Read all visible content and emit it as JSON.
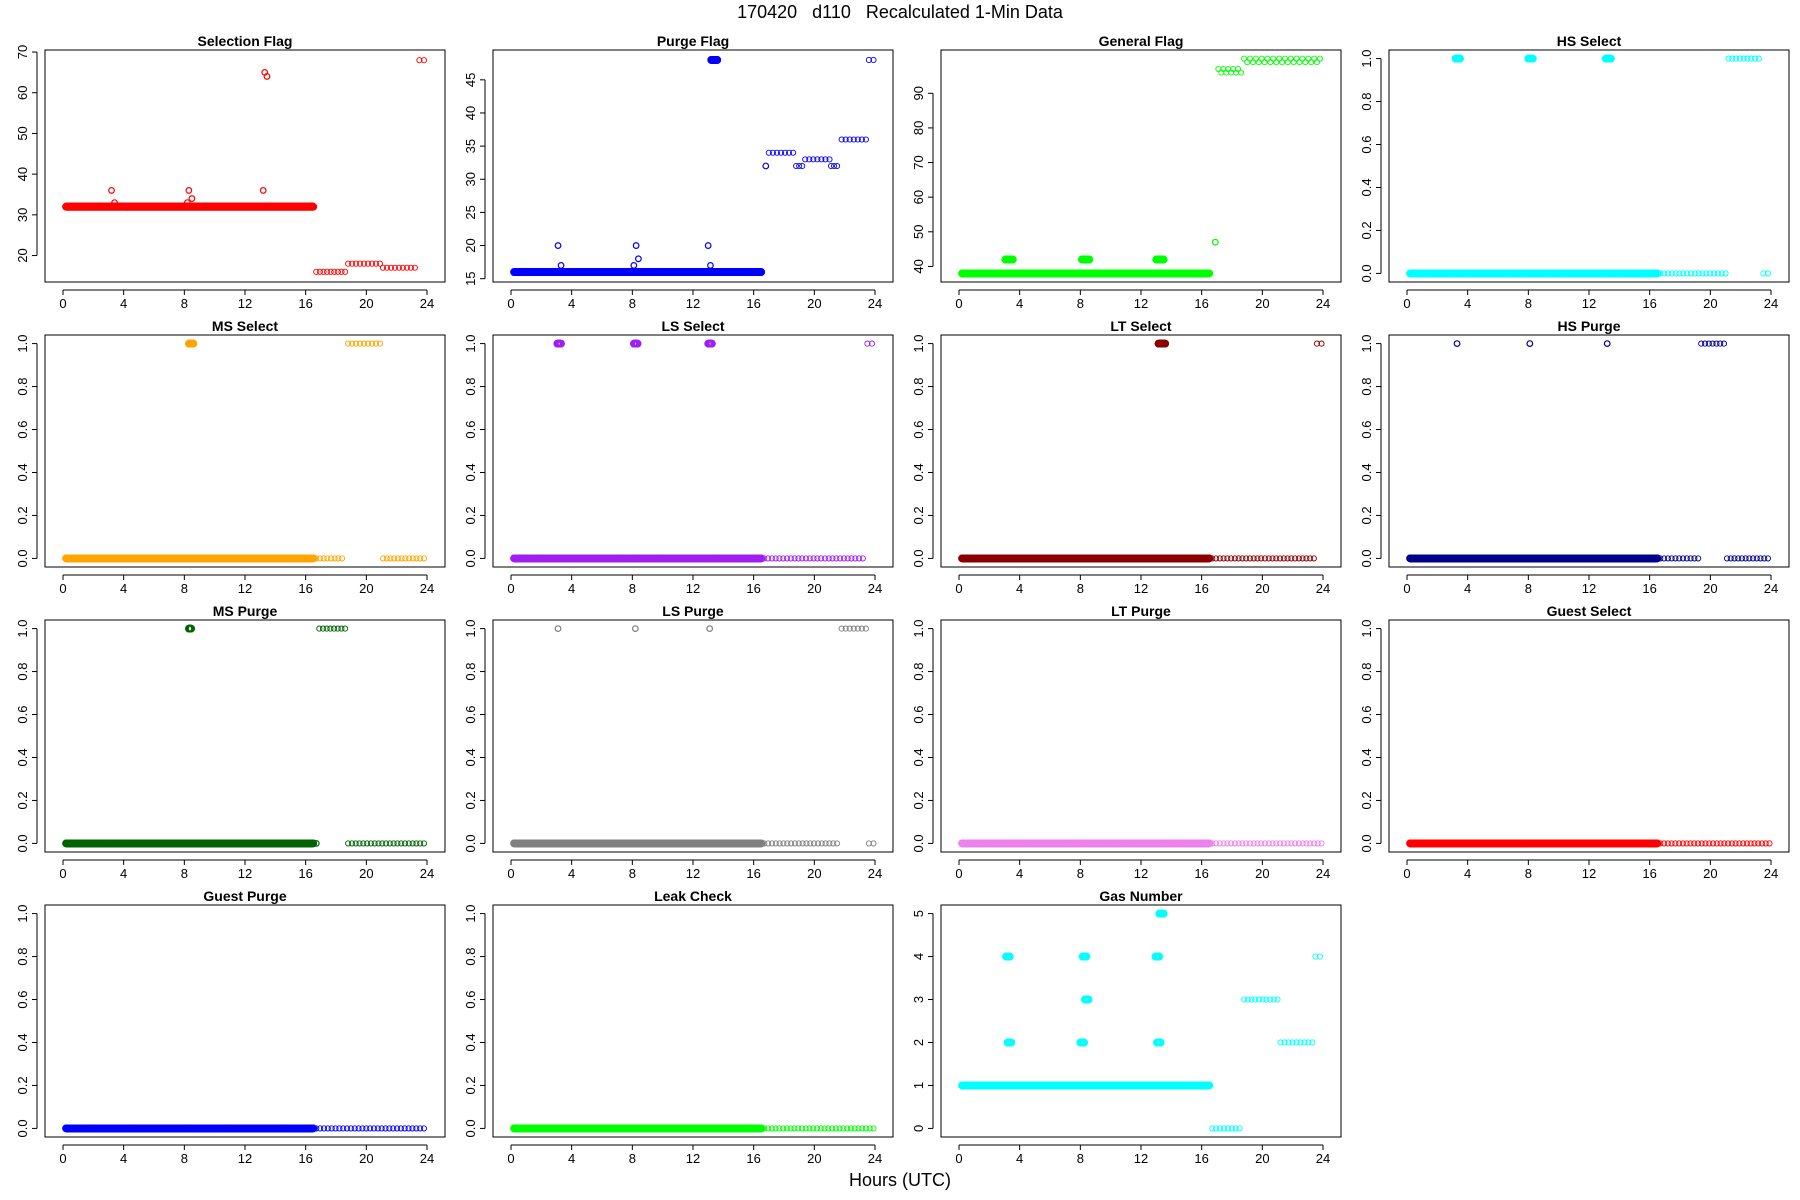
{
  "figure": {
    "title": "170420   d110   Recalculated 1-Min Data",
    "xlabel": "Hours (UTC)"
  },
  "chart_data": [
    {
      "type": "scatter",
      "title": "Selection Flag",
      "color": "#ff0000",
      "xlim": [
        0,
        24
      ],
      "xticks": [
        0,
        4,
        8,
        12,
        16,
        20,
        24
      ],
      "ylim": [
        13.5,
        70.5
      ],
      "yticks": [
        20,
        30,
        40,
        50,
        60,
        70
      ],
      "segments": [
        {
          "x0": 0.2,
          "x1": 16.5,
          "y": 32,
          "step": 0.0167,
          "style": "dense"
        },
        {
          "x0": 16.7,
          "x1": 18.6,
          "y": 16,
          "step": 0.25,
          "style": "sparse"
        },
        {
          "x0": 18.8,
          "x1": 20.9,
          "y": 18,
          "step": 0.25,
          "style": "sparse"
        },
        {
          "x0": 21.1,
          "x1": 23.2,
          "y": 17,
          "step": 0.25,
          "style": "sparse"
        },
        {
          "x0": 23.5,
          "x1": 23.8,
          "y": 68,
          "step": 0.25,
          "style": "sparse"
        }
      ],
      "points": [
        {
          "x": 3.2,
          "y": 36
        },
        {
          "x": 3.4,
          "y": 33
        },
        {
          "x": 8.2,
          "y": 33
        },
        {
          "x": 8.3,
          "y": 36
        },
        {
          "x": 8.5,
          "y": 34
        },
        {
          "x": 13.2,
          "y": 36
        },
        {
          "x": 13.3,
          "y": 65
        },
        {
          "x": 13.45,
          "y": 64
        }
      ]
    },
    {
      "type": "scatter",
      "title": "Purge Flag",
      "color": "#0000ff",
      "xlim": [
        0,
        24
      ],
      "xticks": [
        0,
        4,
        8,
        12,
        16,
        20,
        24
      ],
      "ylim": [
        14.5,
        49.5
      ],
      "yticks": [
        15,
        20,
        25,
        30,
        35,
        40,
        45
      ],
      "segments": [
        {
          "x0": 0.2,
          "x1": 16.5,
          "y": 16,
          "step": 0.0167,
          "style": "dense"
        },
        {
          "x0": 13.2,
          "x1": 13.6,
          "y": 48,
          "step": 0.0167,
          "style": "dense"
        },
        {
          "x0": 17.0,
          "x1": 18.6,
          "y": 34,
          "step": 0.25,
          "style": "sparse"
        },
        {
          "x0": 18.8,
          "x1": 19.2,
          "y": 32,
          "step": 0.25,
          "style": "sparse"
        },
        {
          "x0": 19.4,
          "x1": 21.0,
          "y": 33,
          "step": 0.25,
          "style": "sparse"
        },
        {
          "x0": 21.1,
          "x1": 21.5,
          "y": 32,
          "step": 0.25,
          "style": "sparse"
        },
        {
          "x0": 21.8,
          "x1": 23.4,
          "y": 36,
          "step": 0.25,
          "style": "sparse"
        },
        {
          "x0": 23.6,
          "x1": 23.9,
          "y": 48,
          "step": 0.25,
          "style": "sparse"
        }
      ],
      "points": [
        {
          "x": 3.1,
          "y": 20
        },
        {
          "x": 3.3,
          "y": 17
        },
        {
          "x": 8.1,
          "y": 17
        },
        {
          "x": 8.25,
          "y": 20
        },
        {
          "x": 8.4,
          "y": 18
        },
        {
          "x": 13.0,
          "y": 20
        },
        {
          "x": 13.15,
          "y": 17
        },
        {
          "x": 16.8,
          "y": 32
        }
      ]
    },
    {
      "type": "scatter",
      "title": "General Flag",
      "color": "#00ff00",
      "xlim": [
        0,
        24
      ],
      "xticks": [
        0,
        4,
        8,
        12,
        16,
        20,
        24
      ],
      "ylim": [
        35.5,
        102.5
      ],
      "yticks": [
        40,
        50,
        60,
        70,
        80,
        90
      ],
      "segments": [
        {
          "x0": 0.2,
          "x1": 16.5,
          "y": 38,
          "step": 0.0167,
          "style": "dense"
        },
        {
          "x0": 3.05,
          "x1": 3.55,
          "y": 42,
          "step": 0.0167,
          "style": "dense"
        },
        {
          "x0": 8.1,
          "x1": 8.6,
          "y": 42,
          "step": 0.0167,
          "style": "dense"
        },
        {
          "x0": 13.0,
          "x1": 13.5,
          "y": 42,
          "step": 0.0167,
          "style": "dense"
        },
        {
          "x0": 17.1,
          "x1": 18.4,
          "y": 97,
          "step": 0.35,
          "style": "sparse"
        },
        {
          "x0": 17.3,
          "x1": 18.6,
          "y": 96,
          "step": 0.35,
          "style": "sparse"
        },
        {
          "x0": 18.8,
          "x1": 23.8,
          "y": 100,
          "step": 0.4,
          "style": "sparse"
        },
        {
          "x0": 19.0,
          "x1": 23.6,
          "y": 99,
          "step": 0.4,
          "style": "sparse"
        }
      ],
      "points": [
        {
          "x": 16.9,
          "y": 47
        }
      ]
    },
    {
      "type": "scatter",
      "title": "HS Select",
      "color": "#00ffff",
      "xlim": [
        0,
        24
      ],
      "xticks": [
        0,
        4,
        8,
        12,
        16,
        20,
        24
      ],
      "ylim": [
        -0.04,
        1.04
      ],
      "yticks": [
        0.0,
        0.2,
        0.4,
        0.6,
        0.8,
        1.0
      ],
      "segments": [
        {
          "x0": 0.2,
          "x1": 16.5,
          "y": 0,
          "step": 0.0167,
          "style": "dense"
        },
        {
          "x0": 3.2,
          "x1": 3.5,
          "y": 1,
          "step": 0.0167,
          "style": "dense"
        },
        {
          "x0": 8.0,
          "x1": 8.3,
          "y": 1,
          "step": 0.0167,
          "style": "dense"
        },
        {
          "x0": 13.1,
          "x1": 13.45,
          "y": 1,
          "step": 0.0167,
          "style": "dense"
        },
        {
          "x0": 16.7,
          "x1": 21.0,
          "y": 0,
          "step": 0.25,
          "style": "sparse"
        },
        {
          "x0": 21.2,
          "x1": 23.2,
          "y": 1,
          "step": 0.25,
          "style": "sparse"
        },
        {
          "x0": 23.5,
          "x1": 23.8,
          "y": 0,
          "step": 0.25,
          "style": "sparse"
        }
      ],
      "points": []
    },
    {
      "type": "scatter",
      "title": "MS Select",
      "color": "#ffa500",
      "xlim": [
        0,
        24
      ],
      "xticks": [
        0,
        4,
        8,
        12,
        16,
        20,
        24
      ],
      "ylim": [
        -0.04,
        1.04
      ],
      "yticks": [
        0.0,
        0.2,
        0.4,
        0.6,
        0.8,
        1.0
      ],
      "segments": [
        {
          "x0": 0.2,
          "x1": 16.5,
          "y": 0,
          "step": 0.0167,
          "style": "dense"
        },
        {
          "x0": 8.3,
          "x1": 8.6,
          "y": 1,
          "step": 0.0167,
          "style": "dense"
        },
        {
          "x0": 16.7,
          "x1": 18.4,
          "y": 0,
          "step": 0.25,
          "style": "sparse"
        },
        {
          "x0": 18.8,
          "x1": 20.9,
          "y": 1,
          "step": 0.25,
          "style": "sparse"
        },
        {
          "x0": 21.1,
          "x1": 23.8,
          "y": 0,
          "step": 0.25,
          "style": "sparse"
        }
      ],
      "points": []
    },
    {
      "type": "scatter",
      "title": "LS Select",
      "color": "#a020f0",
      "xlim": [
        0,
        24
      ],
      "xticks": [
        0,
        4,
        8,
        12,
        16,
        20,
        24
      ],
      "ylim": [
        -0.04,
        1.04
      ],
      "yticks": [
        0.0,
        0.2,
        0.4,
        0.6,
        0.8,
        1.0
      ],
      "segments": [
        {
          "x0": 0.2,
          "x1": 16.5,
          "y": 0,
          "step": 0.0167,
          "style": "dense"
        },
        {
          "x0": 3.05,
          "x1": 3.3,
          "y": 1,
          "step": 0.0167,
          "style": "dense"
        },
        {
          "x0": 8.1,
          "x1": 8.35,
          "y": 1,
          "step": 0.0167,
          "style": "dense"
        },
        {
          "x0": 13.0,
          "x1": 13.25,
          "y": 1,
          "step": 0.0167,
          "style": "dense"
        },
        {
          "x0": 16.7,
          "x1": 23.2,
          "y": 0,
          "step": 0.25,
          "style": "sparse"
        },
        {
          "x0": 23.5,
          "x1": 23.8,
          "y": 1,
          "step": 0.25,
          "style": "sparse"
        }
      ],
      "points": []
    },
    {
      "type": "scatter",
      "title": "LT Select",
      "color": "#8b0000",
      "xlim": [
        0,
        24
      ],
      "xticks": [
        0,
        4,
        8,
        12,
        16,
        20,
        24
      ],
      "ylim": [
        -0.04,
        1.04
      ],
      "yticks": [
        0.0,
        0.2,
        0.4,
        0.6,
        0.8,
        1.0
      ],
      "segments": [
        {
          "x0": 0.2,
          "x1": 16.5,
          "y": 0,
          "step": 0.0167,
          "style": "dense"
        },
        {
          "x0": 13.15,
          "x1": 13.6,
          "y": 1,
          "step": 0.0167,
          "style": "dense"
        },
        {
          "x0": 16.7,
          "x1": 23.4,
          "y": 0,
          "step": 0.25,
          "style": "sparse"
        },
        {
          "x0": 23.6,
          "x1": 23.9,
          "y": 1,
          "step": 0.25,
          "style": "sparse"
        }
      ],
      "points": []
    },
    {
      "type": "scatter",
      "title": "HS Purge",
      "color": "#00008b",
      "xlim": [
        0,
        24
      ],
      "xticks": [
        0,
        4,
        8,
        12,
        16,
        20,
        24
      ],
      "ylim": [
        -0.04,
        1.04
      ],
      "yticks": [
        0.0,
        0.2,
        0.4,
        0.6,
        0.8,
        1.0
      ],
      "segments": [
        {
          "x0": 0.2,
          "x1": 16.5,
          "y": 0,
          "step": 0.0167,
          "style": "dense"
        },
        {
          "x0": 16.7,
          "x1": 19.2,
          "y": 0,
          "step": 0.25,
          "style": "sparse"
        },
        {
          "x0": 19.4,
          "x1": 20.9,
          "y": 1,
          "step": 0.25,
          "style": "sparse"
        },
        {
          "x0": 21.1,
          "x1": 23.8,
          "y": 0,
          "step": 0.25,
          "style": "sparse"
        }
      ],
      "points": [
        {
          "x": 3.3,
          "y": 1
        },
        {
          "x": 8.1,
          "y": 1
        },
        {
          "x": 13.2,
          "y": 1
        }
      ]
    },
    {
      "type": "scatter",
      "title": "MS Purge",
      "color": "#006400",
      "xlim": [
        0,
        24
      ],
      "xticks": [
        0,
        4,
        8,
        12,
        16,
        20,
        24
      ],
      "ylim": [
        -0.04,
        1.04
      ],
      "yticks": [
        0.0,
        0.2,
        0.4,
        0.6,
        0.8,
        1.0
      ],
      "segments": [
        {
          "x0": 0.2,
          "x1": 16.5,
          "y": 0,
          "step": 0.0167,
          "style": "dense"
        },
        {
          "x0": 8.3,
          "x1": 8.45,
          "y": 1,
          "step": 0.0167,
          "style": "dense"
        },
        {
          "x0": 16.9,
          "x1": 18.6,
          "y": 1,
          "step": 0.25,
          "style": "sparse"
        },
        {
          "x0": 18.8,
          "x1": 23.8,
          "y": 0,
          "step": 0.25,
          "style": "sparse"
        }
      ],
      "points": [
        {
          "x": 16.7,
          "y": 0
        }
      ]
    },
    {
      "type": "scatter",
      "title": "LS Purge",
      "color": "#808080",
      "xlim": [
        0,
        24
      ],
      "xticks": [
        0,
        4,
        8,
        12,
        16,
        20,
        24
      ],
      "ylim": [
        -0.04,
        1.04
      ],
      "yticks": [
        0.0,
        0.2,
        0.4,
        0.6,
        0.8,
        1.0
      ],
      "segments": [
        {
          "x0": 0.2,
          "x1": 16.5,
          "y": 0,
          "step": 0.0167,
          "style": "dense"
        },
        {
          "x0": 16.7,
          "x1": 21.5,
          "y": 0,
          "step": 0.25,
          "style": "sparse"
        },
        {
          "x0": 21.8,
          "x1": 23.4,
          "y": 1,
          "step": 0.25,
          "style": "sparse"
        },
        {
          "x0": 23.6,
          "x1": 23.9,
          "y": 0,
          "step": 0.25,
          "style": "sparse"
        }
      ],
      "points": [
        {
          "x": 3.1,
          "y": 1
        },
        {
          "x": 8.2,
          "y": 1
        },
        {
          "x": 13.1,
          "y": 1
        }
      ]
    },
    {
      "type": "scatter",
      "title": "LT Purge",
      "color": "#ee82ee",
      "xlim": [
        0,
        24
      ],
      "xticks": [
        0,
        4,
        8,
        12,
        16,
        20,
        24
      ],
      "ylim": [
        -0.04,
        1.04
      ],
      "yticks": [
        0.0,
        0.2,
        0.4,
        0.6,
        0.8,
        1.0
      ],
      "segments": [
        {
          "x0": 0.2,
          "x1": 16.5,
          "y": 0,
          "step": 0.0167,
          "style": "dense"
        },
        {
          "x0": 16.7,
          "x1": 23.9,
          "y": 0,
          "step": 0.25,
          "style": "sparse"
        }
      ],
      "points": []
    },
    {
      "type": "scatter",
      "title": "Guest Select",
      "color": "#ff0000",
      "xlim": [
        0,
        24
      ],
      "xticks": [
        0,
        4,
        8,
        12,
        16,
        20,
        24
      ],
      "ylim": [
        -0.04,
        1.04
      ],
      "yticks": [
        0.0,
        0.2,
        0.4,
        0.6,
        0.8,
        1.0
      ],
      "segments": [
        {
          "x0": 0.2,
          "x1": 16.5,
          "y": 0,
          "step": 0.0167,
          "style": "dense"
        },
        {
          "x0": 16.7,
          "x1": 23.9,
          "y": 0,
          "step": 0.25,
          "style": "sparse"
        }
      ],
      "points": []
    },
    {
      "type": "scatter",
      "title": "Guest Purge",
      "color": "#0000ff",
      "xlim": [
        0,
        24
      ],
      "xticks": [
        0,
        4,
        8,
        12,
        16,
        20,
        24
      ],
      "ylim": [
        -0.04,
        1.04
      ],
      "yticks": [
        0.0,
        0.2,
        0.4,
        0.6,
        0.8,
        1.0
      ],
      "segments": [
        {
          "x0": 0.2,
          "x1": 16.5,
          "y": 0,
          "step": 0.0167,
          "style": "dense"
        },
        {
          "x0": 16.7,
          "x1": 23.8,
          "y": 0,
          "step": 0.25,
          "style": "sparse"
        }
      ],
      "points": []
    },
    {
      "type": "scatter",
      "title": "Leak Check",
      "color": "#00ff00",
      "xlim": [
        0,
        24
      ],
      "xticks": [
        0,
        4,
        8,
        12,
        16,
        20,
        24
      ],
      "ylim": [
        -0.04,
        1.04
      ],
      "yticks": [
        0.0,
        0.2,
        0.4,
        0.6,
        0.8,
        1.0
      ],
      "segments": [
        {
          "x0": 0.2,
          "x1": 16.5,
          "y": 0,
          "step": 0.0167,
          "style": "dense"
        },
        {
          "x0": 16.7,
          "x1": 23.9,
          "y": 0,
          "step": 0.25,
          "style": "sparse"
        }
      ],
      "points": []
    },
    {
      "type": "scatter",
      "title": "Gas Number",
      "color": "#00ffff",
      "xlim": [
        0,
        24
      ],
      "xticks": [
        0,
        4,
        8,
        12,
        16,
        20,
        24
      ],
      "ylim": [
        -0.2,
        5.2
      ],
      "yticks": [
        0,
        1,
        2,
        3,
        4,
        5
      ],
      "segments": [
        {
          "x0": 0.2,
          "x1": 16.5,
          "y": 1,
          "step": 0.0167,
          "style": "dense"
        },
        {
          "x0": 3.1,
          "x1": 3.35,
          "y": 4,
          "step": 0.0167,
          "style": "dense"
        },
        {
          "x0": 3.2,
          "x1": 3.45,
          "y": 2,
          "step": 0.0167,
          "style": "dense"
        },
        {
          "x0": 8.0,
          "x1": 8.25,
          "y": 2,
          "step": 0.0167,
          "style": "dense"
        },
        {
          "x0": 8.15,
          "x1": 8.4,
          "y": 4,
          "step": 0.0167,
          "style": "dense"
        },
        {
          "x0": 8.3,
          "x1": 8.55,
          "y": 3,
          "step": 0.0167,
          "style": "dense"
        },
        {
          "x0": 12.95,
          "x1": 13.2,
          "y": 4,
          "step": 0.0167,
          "style": "dense"
        },
        {
          "x0": 13.05,
          "x1": 13.3,
          "y": 2,
          "step": 0.0167,
          "style": "dense"
        },
        {
          "x0": 13.2,
          "x1": 13.5,
          "y": 5,
          "step": 0.0167,
          "style": "dense"
        },
        {
          "x0": 16.7,
          "x1": 18.5,
          "y": 0,
          "step": 0.25,
          "style": "sparse"
        },
        {
          "x0": 18.8,
          "x1": 21.0,
          "y": 3,
          "step": 0.25,
          "style": "sparse"
        },
        {
          "x0": 21.2,
          "x1": 23.3,
          "y": 2,
          "step": 0.25,
          "style": "sparse"
        },
        {
          "x0": 23.5,
          "x1": 23.8,
          "y": 4,
          "step": 0.25,
          "style": "sparse"
        }
      ],
      "points": []
    }
  ]
}
